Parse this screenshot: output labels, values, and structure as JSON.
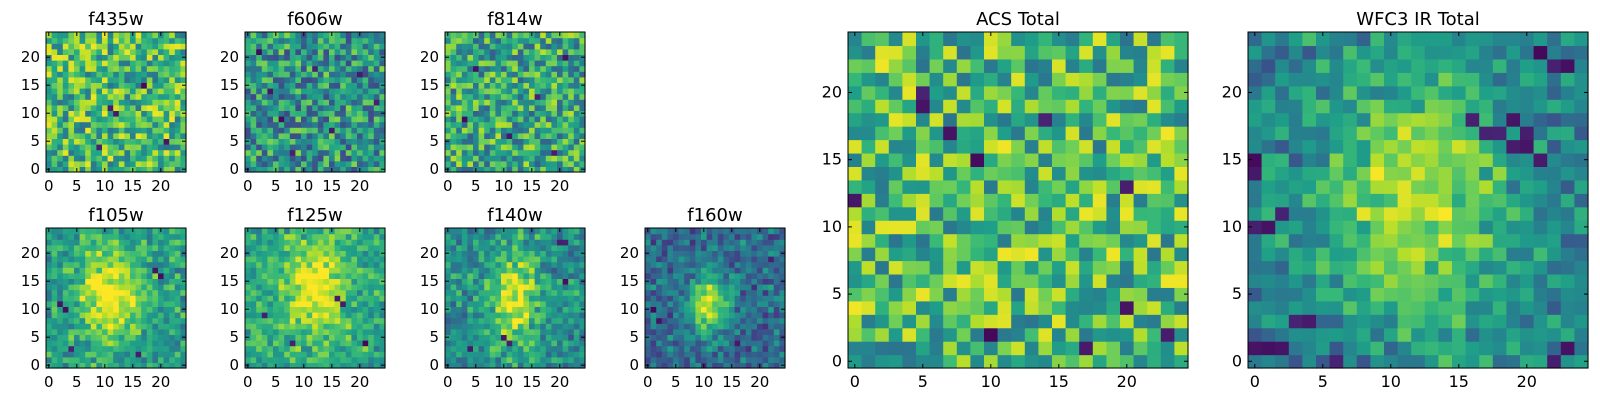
{
  "figure": {
    "background": "#ffffff",
    "colormap": [
      "#440154",
      "#482878",
      "#3e4989",
      "#31688e",
      "#26828e",
      "#1f9e89",
      "#35b779",
      "#6ece58",
      "#b5de2b",
      "#fde725"
    ]
  },
  "chart_data": [
    {
      "type": "heatmap",
      "title": "f435w",
      "xlabel": "",
      "ylabel": "",
      "grid_size": [
        25,
        25
      ],
      "xlim": [
        0,
        24
      ],
      "ylim": [
        0,
        24
      ],
      "xticks": [
        0,
        5,
        10,
        15,
        20
      ],
      "yticks": [
        0,
        5,
        10,
        15,
        20
      ],
      "cmap": "viridis",
      "structure": "noise",
      "brightness": 0.68,
      "seed": 11,
      "low_pixels": [
        [
          12,
          10
        ],
        [
          11,
          11
        ],
        [
          17,
          15
        ],
        [
          9,
          4
        ],
        [
          21,
          5
        ]
      ]
    },
    {
      "type": "heatmap",
      "title": "f606w",
      "xlabel": "",
      "ylabel": "",
      "grid_size": [
        25,
        25
      ],
      "xlim": [
        0,
        24
      ],
      "ylim": [
        0,
        24
      ],
      "xticks": [
        0,
        5,
        10,
        15,
        20
      ],
      "yticks": [
        0,
        5,
        10,
        15,
        20
      ],
      "cmap": "viridis",
      "structure": "noise",
      "brightness": 0.52,
      "seed": 23,
      "low_pixels": [
        [
          2,
          21
        ],
        [
          4,
          14
        ],
        [
          8,
          3
        ],
        [
          15,
          7
        ],
        [
          20,
          17
        ],
        [
          23,
          12
        ],
        [
          6,
          9
        ],
        [
          12,
          18
        ]
      ]
    },
    {
      "type": "heatmap",
      "title": "f814w",
      "xlabel": "",
      "ylabel": "",
      "grid_size": [
        25,
        25
      ],
      "xlim": [
        0,
        24
      ],
      "ylim": [
        0,
        24
      ],
      "xticks": [
        0,
        5,
        10,
        15,
        20
      ],
      "yticks": [
        0,
        5,
        10,
        15,
        20
      ],
      "cmap": "viridis",
      "structure": "noise",
      "brightness": 0.6,
      "seed": 37,
      "low_pixels": [
        [
          5,
          18
        ],
        [
          11,
          6
        ],
        [
          16,
          13
        ],
        [
          19,
          3
        ],
        [
          3,
          9
        ],
        [
          21,
          20
        ]
      ]
    },
    {
      "type": "heatmap",
      "title": "f105w",
      "xlabel": "",
      "ylabel": "",
      "grid_size": [
        25,
        25
      ],
      "xlim": [
        0,
        24
      ],
      "ylim": [
        0,
        24
      ],
      "xticks": [
        0,
        5,
        10,
        15,
        20
      ],
      "yticks": [
        0,
        5,
        10,
        15,
        20
      ],
      "cmap": "viridis",
      "structure": "source",
      "brightness": 0.55,
      "seed": 41,
      "source_center": [
        11,
        13
      ],
      "source_sigma": [
        4,
        6
      ],
      "source_amp": 0.45,
      "low_pixels": [
        [
          19,
          17
        ],
        [
          20,
          16
        ],
        [
          2,
          11
        ],
        [
          3,
          10
        ],
        [
          16,
          2
        ],
        [
          4,
          3
        ]
      ]
    },
    {
      "type": "heatmap",
      "title": "f125w",
      "xlabel": "",
      "ylabel": "",
      "grid_size": [
        25,
        25
      ],
      "xlim": [
        0,
        24
      ],
      "ylim": [
        0,
        24
      ],
      "xticks": [
        0,
        5,
        10,
        15,
        20
      ],
      "yticks": [
        0,
        5,
        10,
        15,
        20
      ],
      "cmap": "viridis",
      "structure": "source",
      "brightness": 0.6,
      "seed": 53,
      "source_center": [
        12,
        14
      ],
      "source_sigma": [
        4,
        6
      ],
      "source_amp": 0.4,
      "low_pixels": [
        [
          17,
          11
        ],
        [
          16,
          12
        ],
        [
          3,
          9
        ],
        [
          21,
          4
        ],
        [
          8,
          4
        ]
      ]
    },
    {
      "type": "heatmap",
      "title": "f140w",
      "xlabel": "",
      "ylabel": "",
      "grid_size": [
        25,
        25
      ],
      "xlim": [
        0,
        24
      ],
      "ylim": [
        0,
        24
      ],
      "xticks": [
        0,
        5,
        10,
        15,
        20
      ],
      "yticks": [
        0,
        5,
        10,
        15,
        20
      ],
      "cmap": "viridis",
      "structure": "source",
      "brightness": 0.5,
      "seed": 67,
      "source_center": [
        12,
        12
      ],
      "source_sigma": [
        3,
        6
      ],
      "source_amp": 0.45,
      "low_pixels": [
        [
          20,
          22
        ],
        [
          21,
          22
        ],
        [
          10,
          5
        ],
        [
          11,
          4
        ],
        [
          4,
          3
        ],
        [
          21,
          15
        ]
      ]
    },
    {
      "type": "heatmap",
      "title": "f160w",
      "xlabel": "",
      "ylabel": "",
      "grid_size": [
        25,
        25
      ],
      "xlim": [
        0,
        24
      ],
      "ylim": [
        0,
        24
      ],
      "xticks": [
        0,
        5,
        10,
        15,
        20
      ],
      "yticks": [
        0,
        5,
        10,
        15,
        20
      ],
      "cmap": "viridis",
      "structure": "source",
      "brightness": 0.35,
      "seed": 79,
      "source_center": [
        11,
        11
      ],
      "source_sigma": [
        2.5,
        3.5
      ],
      "source_amp": 0.6,
      "low_pixels": [
        [
          1,
          10
        ],
        [
          2,
          8
        ],
        [
          22,
          19
        ],
        [
          16,
          4
        ]
      ]
    },
    {
      "type": "heatmap",
      "title": "ACS Total",
      "xlabel": "",
      "ylabel": "",
      "grid_size": [
        25,
        25
      ],
      "xlim": [
        0,
        24
      ],
      "ylim": [
        0,
        24
      ],
      "xticks": [
        0,
        5,
        10,
        15,
        20
      ],
      "yticks": [
        0,
        5,
        10,
        15,
        20
      ],
      "cmap": "viridis",
      "structure": "noise",
      "brightness": 0.68,
      "seed": 97,
      "low_pixels": [
        [
          5,
          20
        ],
        [
          7,
          17
        ],
        [
          14,
          18
        ],
        [
          0,
          12
        ],
        [
          9,
          15
        ],
        [
          20,
          13
        ],
        [
          20,
          4
        ],
        [
          23,
          2
        ],
        [
          17,
          1
        ],
        [
          10,
          2
        ],
        [
          5,
          19
        ]
      ]
    },
    {
      "type": "heatmap",
      "title": "WFC3 IR Total",
      "xlabel": "",
      "ylabel": "",
      "grid_size": [
        25,
        25
      ],
      "xlim": [
        0,
        24
      ],
      "ylim": [
        0,
        24
      ],
      "xticks": [
        0,
        5,
        10,
        15,
        20
      ],
      "yticks": [
        0,
        5,
        10,
        15,
        20
      ],
      "cmap": "viridis",
      "structure": "source",
      "brightness": 0.45,
      "seed": 113,
      "source_center": [
        12,
        12
      ],
      "source_sigma": [
        4.5,
        6.5
      ],
      "source_amp": 0.45,
      "low_pixels": [
        [
          17,
          17
        ],
        [
          18,
          17
        ],
        [
          19,
          18
        ],
        [
          20,
          17
        ],
        [
          20,
          16
        ],
        [
          19,
          16
        ],
        [
          16,
          18
        ],
        [
          21,
          15
        ],
        [
          0,
          10
        ],
        [
          1,
          10
        ],
        [
          2,
          11
        ],
        [
          0,
          1
        ],
        [
          1,
          1
        ],
        [
          2,
          1
        ],
        [
          3,
          3
        ],
        [
          4,
          3
        ],
        [
          6,
          0
        ],
        [
          22,
          0
        ],
        [
          23,
          1
        ],
        [
          21,
          23
        ],
        [
          22,
          22
        ],
        [
          23,
          22
        ],
        [
          0,
          14
        ],
        [
          0,
          15
        ]
      ]
    }
  ]
}
